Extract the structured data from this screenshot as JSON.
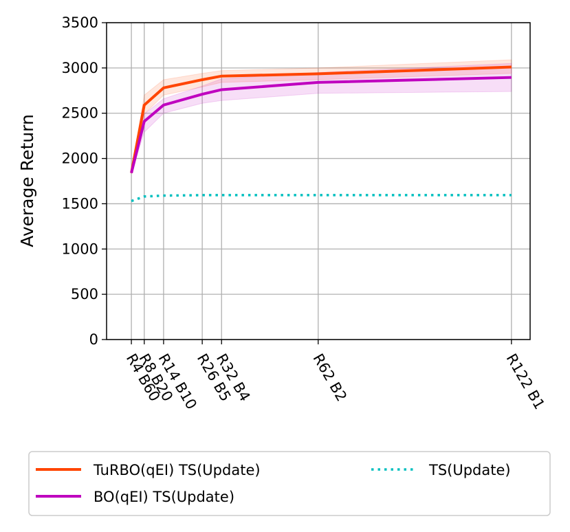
{
  "chart_data": {
    "type": "line",
    "y_label": "Average Return",
    "x": [
      4,
      8,
      14,
      26,
      32,
      62,
      122
    ],
    "xlim": [
      -3.7,
      127.8
    ],
    "xticks": [
      {
        "value": 4,
        "label": "R4 B60"
      },
      {
        "value": 8,
        "label": "R8 B20"
      },
      {
        "value": 14,
        "label": "R14 B10"
      },
      {
        "value": 26,
        "label": "R26 B5"
      },
      {
        "value": 32,
        "label": "R32 B4"
      },
      {
        "value": 62,
        "label": "R62 B2"
      },
      {
        "value": 122,
        "label": "R122 B1"
      }
    ],
    "ylim": [
      0,
      3500
    ],
    "yticks": [
      0,
      500,
      1000,
      1500,
      2000,
      2500,
      3000,
      3500
    ],
    "grid": true,
    "legend": "bottom",
    "series": [
      {
        "name": "TuRBO(qEI) TS(Update)",
        "color": "#ff4500",
        "style": "solid",
        "values": [
          1840,
          2590,
          2780,
          2870,
          2910,
          2935,
          3010
        ],
        "lower": [
          1830,
          2490,
          2700,
          2790,
          2840,
          2870,
          2940
        ],
        "upper": [
          1850,
          2700,
          2870,
          2940,
          2970,
          3000,
          3090
        ]
      },
      {
        "name": "BO(qEI) TS(Update)",
        "color": "#bf00bf",
        "style": "solid",
        "values": [
          1840,
          2410,
          2590,
          2710,
          2760,
          2840,
          2895
        ],
        "lower": [
          1830,
          2290,
          2500,
          2610,
          2640,
          2720,
          2740
        ],
        "upper": [
          1850,
          2490,
          2660,
          2800,
          2880,
          2950,
          3050
        ]
      },
      {
        "name": "TS(Update)",
        "color": "#00bfbf",
        "style": "dotted",
        "values": [
          1530,
          1580,
          1590,
          1595,
          1595,
          1595,
          1595
        ]
      }
    ]
  }
}
